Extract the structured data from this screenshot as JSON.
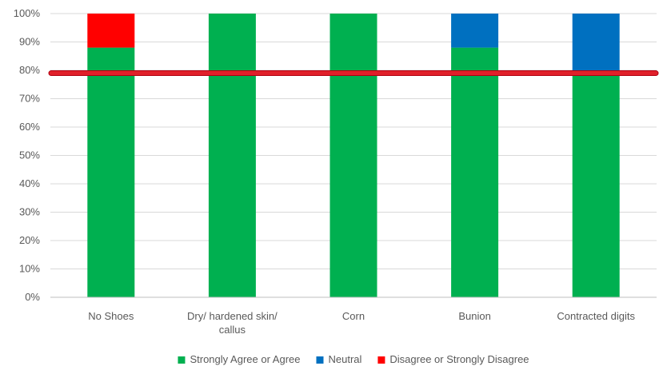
{
  "chart_data": {
    "type": "bar",
    "stacked": true,
    "categories": [
      [
        "No Shoes"
      ],
      [
        "Dry/ hardened skin/",
        "callus"
      ],
      [
        "Corn"
      ],
      [
        "Bunion"
      ],
      [
        "Contracted digits"
      ]
    ],
    "series": [
      {
        "name": "Strongly Agree or Agree",
        "color": "#00b050",
        "values": [
          88,
          100,
          100,
          88,
          80
        ]
      },
      {
        "name": "Neutral",
        "color": "#0070c0",
        "values": [
          0,
          0,
          0,
          12,
          20
        ]
      },
      {
        "name": "Disagree or Strongly Disagree",
        "color": "#ff0000",
        "values": [
          12,
          0,
          0,
          0,
          0
        ]
      }
    ],
    "ylim": [
      0,
      100
    ],
    "yticks": [
      "0%",
      "10%",
      "20%",
      "30%",
      "40%",
      "50%",
      "60%",
      "70%",
      "80%",
      "90%",
      "100%"
    ],
    "grid": true,
    "reference_line": {
      "value": 79,
      "color": "#e0202a"
    },
    "legend_position": "bottom",
    "title": "",
    "xlabel": "",
    "ylabel": ""
  }
}
